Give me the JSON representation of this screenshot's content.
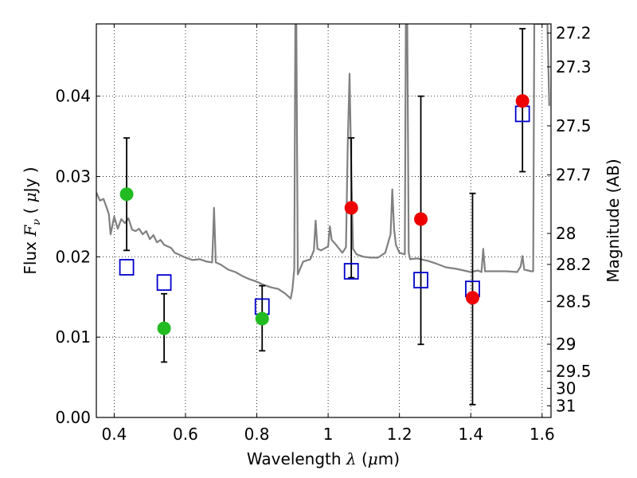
{
  "chart_data": {
    "type": "scatter",
    "title": "",
    "xlabel": "Wavelength  λ (μm)",
    "ylabel": "Flux  Fν  ( μJy )",
    "ylabel_right": "Magnitude (AB)",
    "xlim": [
      0.35,
      1.625
    ],
    "ylim": [
      0.0,
      0.049
    ],
    "grid": true,
    "x_ticks": [
      0.4,
      0.6,
      0.8,
      1.0,
      1.2,
      1.4,
      1.6
    ],
    "x_tick_labels": [
      "0.4",
      "0.6",
      "0.8",
      "1",
      "1.2",
      "1.4",
      "1.6"
    ],
    "y_ticks": [
      0.0,
      0.01,
      0.02,
      0.03,
      0.04
    ],
    "y_tick_labels": [
      "0.00",
      "0.01",
      "0.02",
      "0.03",
      "0.04"
    ],
    "right_axis_ticks": [
      "27.2",
      "27.3",
      "27.5",
      "27.7",
      "28",
      "28.2",
      "28.5",
      "29",
      "29.5",
      "30",
      "31"
    ],
    "colors": {
      "spectrum": "#808080",
      "model": "#0000cc",
      "green": "#22bb22",
      "red": "#ee0000",
      "errorbar": "#000000"
    },
    "series": [
      {
        "marker": "open-square",
        "color": "#0000cc",
        "x": [
          0.435,
          0.54,
          0.815,
          1.065,
          1.26,
          1.405,
          1.545
        ],
        "y": [
          0.0187,
          0.0168,
          0.0138,
          0.0182,
          0.0171,
          0.016,
          0.0378
        ]
      },
      {
        "marker": "filled-circle",
        "color": "#22bb22",
        "x": [
          0.435,
          0.54,
          0.815
        ],
        "y": [
          0.0278,
          0.0111,
          0.0123
        ],
        "yerr_low": [
          0.0208,
          0.0069,
          0.0083
        ],
        "yerr_high": [
          0.0348,
          0.0154,
          0.0164
        ]
      },
      {
        "marker": "filled-circle",
        "color": "#ee0000",
        "x": [
          1.065,
          1.26,
          1.405,
          1.545
        ],
        "y": [
          0.0261,
          0.0247,
          0.0149,
          0.0394
        ],
        "yerr_low": [
          0.0174,
          0.0091,
          0.0016,
          0.0306
        ],
        "yerr_high": [
          0.0348,
          0.04,
          0.0279,
          0.0484
        ]
      }
    ],
    "spectrum": {
      "x": [
        0.35,
        0.36,
        0.37,
        0.38,
        0.385,
        0.39,
        0.4,
        0.41,
        0.42,
        0.43,
        0.44,
        0.45,
        0.46,
        0.47,
        0.48,
        0.49,
        0.5,
        0.51,
        0.52,
        0.53,
        0.54,
        0.55,
        0.56,
        0.57,
        0.58,
        0.6,
        0.62,
        0.64,
        0.66,
        0.675,
        0.68,
        0.685,
        0.7,
        0.72,
        0.74,
        0.76,
        0.78,
        0.8,
        0.82,
        0.84,
        0.86,
        0.88,
        0.895,
        0.9,
        0.905,
        0.908,
        0.911,
        0.915,
        0.93,
        0.95,
        0.96,
        0.965,
        0.97,
        0.98,
        1.0,
        1.005,
        1.01,
        1.02,
        1.04,
        1.05,
        1.055,
        1.06,
        1.065,
        1.07,
        1.08,
        1.1,
        1.12,
        1.14,
        1.16,
        1.175,
        1.18,
        1.185,
        1.19,
        1.2,
        1.215,
        1.218,
        1.222,
        1.226,
        1.23,
        1.25,
        1.28,
        1.3,
        1.33,
        1.36,
        1.38,
        1.4,
        1.42,
        1.43,
        1.435,
        1.44,
        1.46,
        1.5,
        1.53,
        1.54,
        1.545,
        1.55,
        1.57,
        1.575,
        1.578,
        1.585,
        1.6,
        1.615,
        1.62
      ],
      "y": [
        0.028,
        0.027,
        0.0272,
        0.026,
        0.0253,
        0.0228,
        0.025,
        0.0235,
        0.0247,
        0.0242,
        0.0248,
        0.0234,
        0.0232,
        0.0235,
        0.0228,
        0.0232,
        0.0222,
        0.0227,
        0.0218,
        0.0221,
        0.0215,
        0.0213,
        0.0211,
        0.0205,
        0.0203,
        0.0199,
        0.0196,
        0.0197,
        0.0194,
        0.0193,
        0.0261,
        0.0193,
        0.019,
        0.0184,
        0.0181,
        0.0176,
        0.0172,
        0.0169,
        0.0165,
        0.0162,
        0.016,
        0.0154,
        0.0148,
        0.016,
        0.0185,
        0.049,
        0.049,
        0.0178,
        0.0194,
        0.0197,
        0.0208,
        0.0245,
        0.021,
        0.0208,
        0.0213,
        0.0238,
        0.0221,
        0.0216,
        0.0205,
        0.0212,
        0.0338,
        0.0428,
        0.0305,
        0.021,
        0.0203,
        0.02,
        0.0199,
        0.0199,
        0.0205,
        0.0228,
        0.0284,
        0.0235,
        0.0215,
        0.0205,
        0.0203,
        0.049,
        0.049,
        0.0205,
        0.0197,
        0.0198,
        0.0195,
        0.0192,
        0.0187,
        0.0185,
        0.0183,
        0.0181,
        0.0183,
        0.0181,
        0.021,
        0.0182,
        0.0182,
        0.0182,
        0.0181,
        0.0188,
        0.0201,
        0.0184,
        0.0182,
        0.0182,
        0.049,
        0.049,
        0.049,
        0.049,
        0.0388
      ]
    }
  }
}
